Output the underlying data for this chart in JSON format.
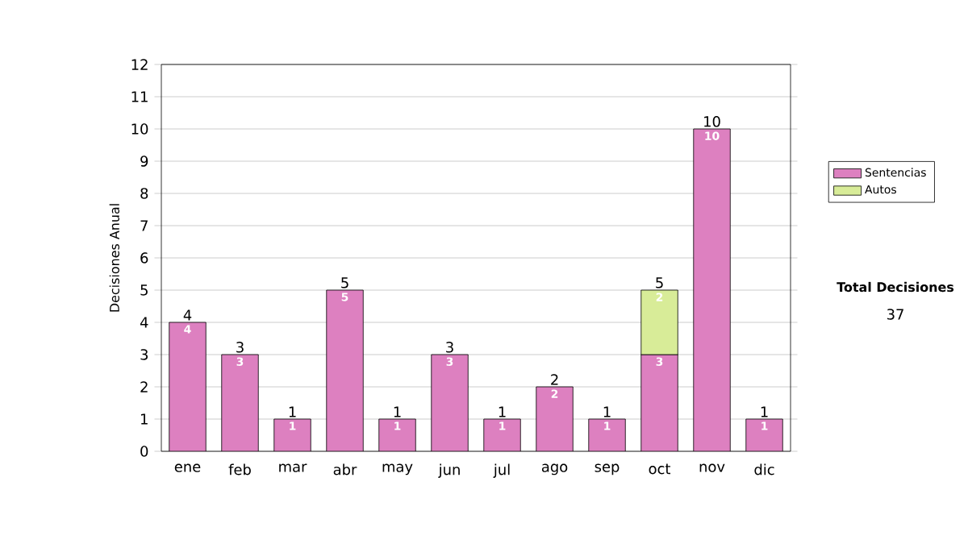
{
  "chart_data": {
    "type": "bar",
    "stacked": true,
    "ylabel": "Decisiones Anual",
    "categories": [
      "ene",
      "feb",
      "mar",
      "abr",
      "may",
      "jun",
      "jul",
      "ago",
      "sep",
      "oct",
      "nov",
      "dic"
    ],
    "series": [
      {
        "name": "Sentencias",
        "color": "#dd80c0",
        "values": [
          4,
          3,
          1,
          5,
          1,
          3,
          1,
          2,
          1,
          3,
          10,
          1
        ],
        "value_labels": [
          "4",
          "3",
          "1",
          "5",
          "1",
          "3",
          "1",
          "2",
          "1",
          "3",
          "10",
          "1"
        ]
      },
      {
        "name": "Autos",
        "color": "#d8ec98",
        "values": [
          null,
          null,
          null,
          null,
          null,
          null,
          null,
          null,
          null,
          2,
          null,
          null
        ],
        "value_labels": [
          null,
          null,
          null,
          null,
          null,
          null,
          null,
          null,
          null,
          "2",
          null,
          null
        ]
      }
    ],
    "totals": [
      "4",
      "3",
      "1",
      "5",
      "1",
      "3",
      "1",
      "2",
      "1",
      "5",
      "10",
      "1"
    ],
    "ylim": [
      0,
      12
    ],
    "yticks": [
      0,
      1,
      2,
      3,
      4,
      5,
      6,
      7,
      8,
      9,
      10,
      11,
      12
    ],
    "grid": "y",
    "legend": "right",
    "annotations": [
      "Total Decisiones",
      "37"
    ]
  }
}
